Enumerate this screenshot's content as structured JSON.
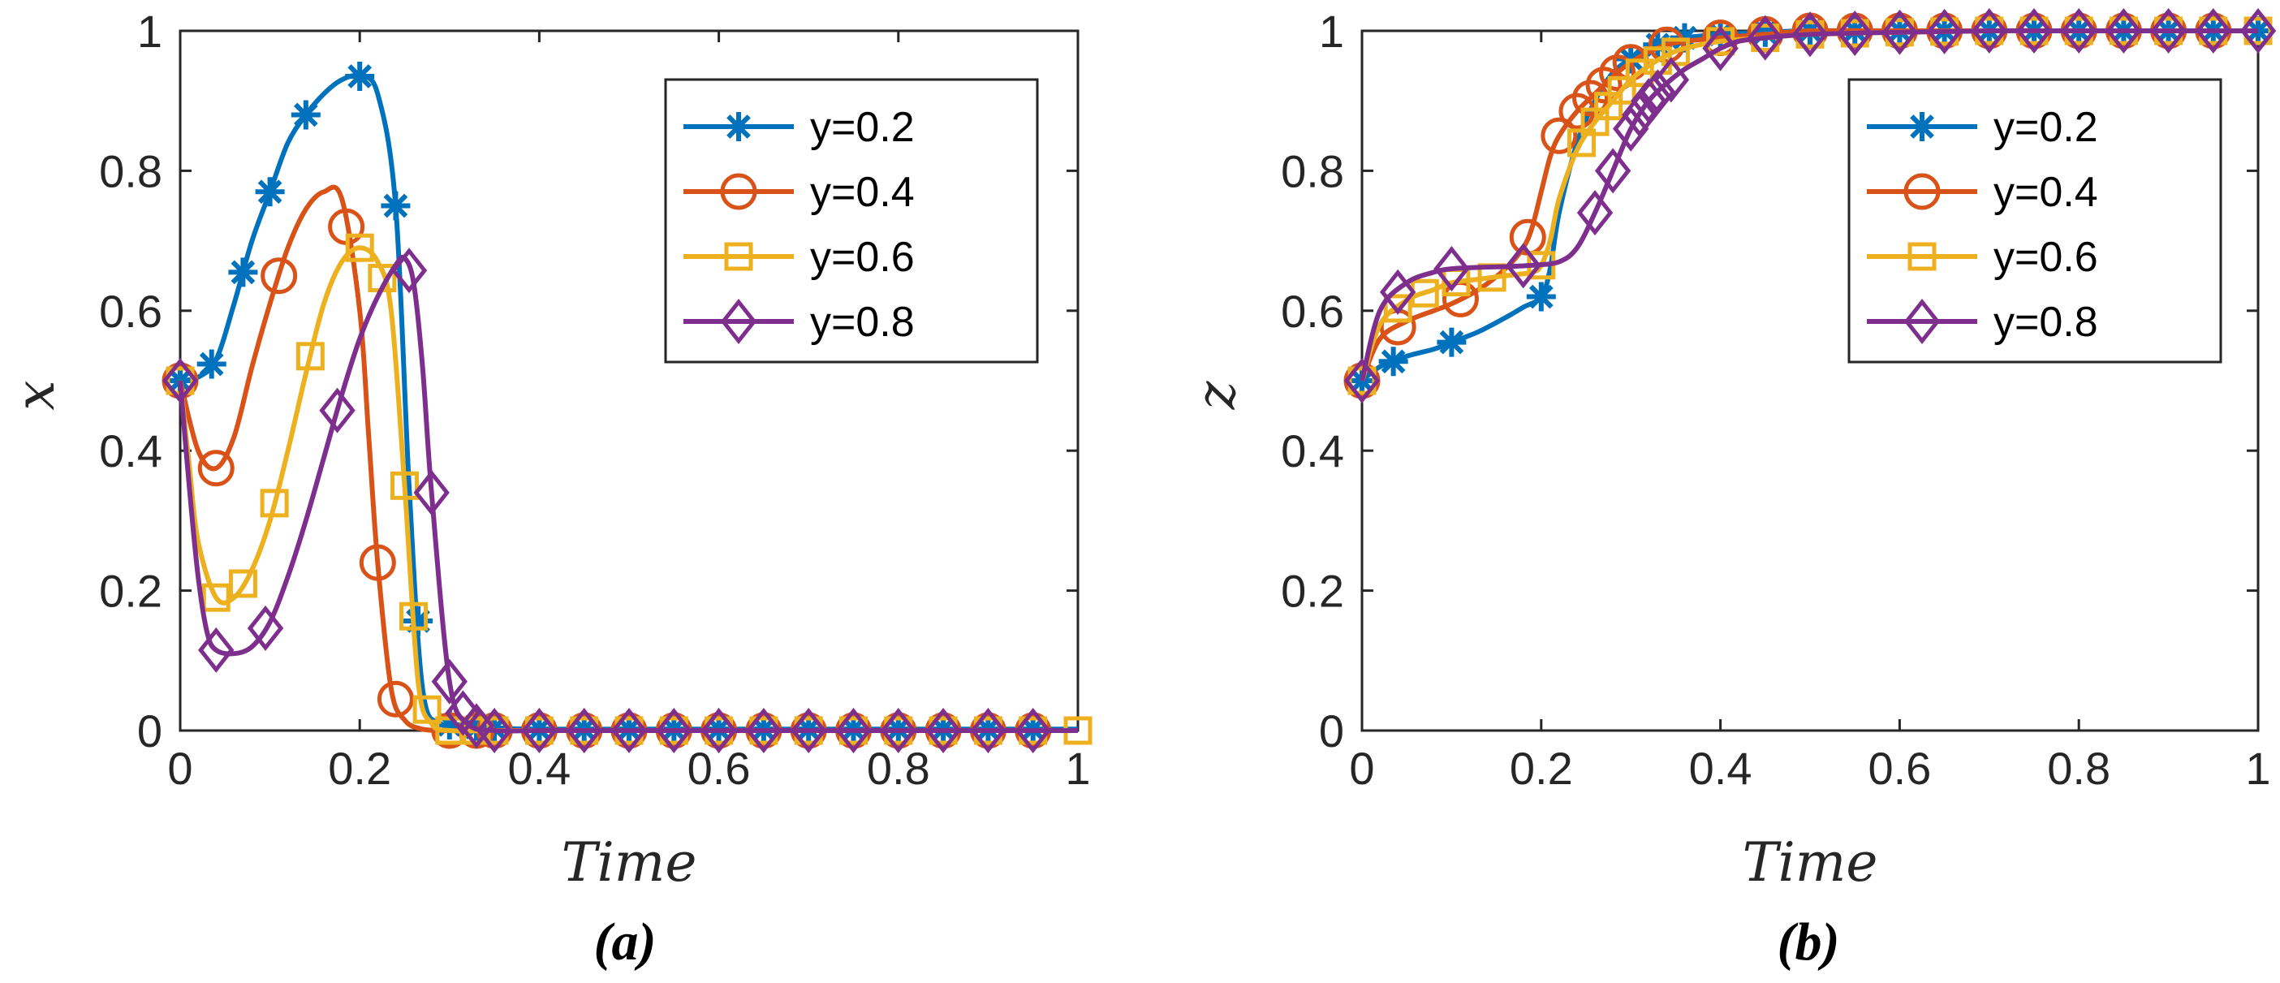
{
  "colors": {
    "series": [
      "#0072BD",
      "#D95319",
      "#EDB120",
      "#7E2F8E"
    ],
    "axis": "#262626"
  },
  "chart_data": [
    {
      "type": "line",
      "panel": "a",
      "caption": "(a)",
      "xlabel": "Time",
      "ylabel": "x",
      "xlim": [
        0,
        1
      ],
      "ylim": [
        0,
        1
      ],
      "xticks": [
        "0",
        "0.2",
        "0.4",
        "0.6",
        "0.8",
        "1"
      ],
      "yticks": [
        "0",
        "0.2",
        "0.4",
        "0.6",
        "0.8",
        "1"
      ],
      "legend_position": "top-right",
      "series": [
        {
          "name": "y=0.2",
          "marker": "asterisk",
          "x": [
            0,
            0.02,
            0.04,
            0.06,
            0.08,
            0.1,
            0.12,
            0.14,
            0.16,
            0.18,
            0.2,
            0.22,
            0.24,
            0.255,
            0.27,
            0.29,
            0.32,
            0.36,
            0.4,
            0.5,
            0.6,
            0.7,
            0.8,
            0.9,
            1.0
          ],
          "y": [
            0.5,
            0.505,
            0.53,
            0.61,
            0.7,
            0.77,
            0.84,
            0.88,
            0.91,
            0.93,
            0.935,
            0.91,
            0.75,
            0.35,
            0.06,
            0.01,
            0.005,
            0.003,
            0.002,
            0.002,
            0.002,
            0.002,
            0.002,
            0.002,
            0.002
          ],
          "markers_x": [
            0,
            0.035,
            0.07,
            0.1,
            0.14,
            0.2,
            0.24,
            0.265,
            0.3,
            0.33,
            0.35,
            0.4,
            0.45,
            0.5,
            0.55,
            0.6,
            0.65,
            0.7,
            0.75,
            0.8,
            0.85,
            0.9,
            0.95
          ]
        },
        {
          "name": "y=0.4",
          "marker": "circle",
          "x": [
            0,
            0.02,
            0.04,
            0.06,
            0.08,
            0.1,
            0.12,
            0.14,
            0.16,
            0.18,
            0.2,
            0.21,
            0.22,
            0.235,
            0.25,
            0.27,
            0.3,
            0.35,
            0.4,
            0.5,
            0.6,
            0.7,
            0.8,
            0.9,
            1.0
          ],
          "y": [
            0.5,
            0.4,
            0.375,
            0.42,
            0.52,
            0.61,
            0.69,
            0.745,
            0.77,
            0.76,
            0.6,
            0.42,
            0.24,
            0.06,
            0.015,
            0.002,
            0.0,
            0.0,
            0.0,
            0.0,
            0.0,
            0.0,
            0.0,
            0.0,
            0.0
          ],
          "markers_x": [
            0,
            0.04,
            0.11,
            0.185,
            0.22,
            0.24,
            0.3,
            0.33,
            0.35,
            0.4,
            0.45,
            0.5,
            0.55,
            0.6,
            0.65,
            0.7,
            0.75,
            0.8,
            0.85,
            0.9,
            0.95
          ]
        },
        {
          "name": "y=0.6",
          "marker": "square",
          "x": [
            0,
            0.01,
            0.02,
            0.04,
            0.06,
            0.08,
            0.1,
            0.12,
            0.14,
            0.16,
            0.18,
            0.2,
            0.22,
            0.235,
            0.25,
            0.265,
            0.28,
            0.3,
            0.35,
            0.4,
            0.5,
            0.6,
            0.7,
            0.8,
            0.9,
            1.0
          ],
          "y": [
            0.5,
            0.38,
            0.27,
            0.19,
            0.19,
            0.23,
            0.3,
            0.4,
            0.51,
            0.61,
            0.67,
            0.69,
            0.67,
            0.6,
            0.35,
            0.07,
            0.01,
            0.0,
            0.0,
            0.0,
            0.0,
            0.0,
            0.0,
            0.0,
            0.0,
            0.0
          ],
          "markers_x": [
            0,
            0.04,
            0.07,
            0.105,
            0.145,
            0.2,
            0.225,
            0.25,
            0.26,
            0.275,
            0.3,
            0.33,
            0.35,
            0.4,
            0.45,
            0.5,
            0.55,
            0.6,
            0.65,
            0.7,
            0.75,
            0.8,
            0.85,
            0.9,
            0.95,
            1.0
          ]
        },
        {
          "name": "y=0.8",
          "marker": "diamond",
          "x": [
            0,
            0.01,
            0.02,
            0.03,
            0.04,
            0.06,
            0.08,
            0.1,
            0.12,
            0.14,
            0.16,
            0.18,
            0.2,
            0.22,
            0.24,
            0.25,
            0.26,
            0.27,
            0.28,
            0.3,
            0.32,
            0.35,
            0.4,
            0.5,
            0.6,
            0.7,
            0.8,
            0.9,
            1.0
          ],
          "y": [
            0.5,
            0.35,
            0.22,
            0.14,
            0.115,
            0.11,
            0.12,
            0.155,
            0.22,
            0.3,
            0.39,
            0.48,
            0.56,
            0.62,
            0.665,
            0.675,
            0.64,
            0.52,
            0.34,
            0.07,
            0.01,
            0.0,
            0.0,
            0.0,
            0.0,
            0.0,
            0.0,
            0.0,
            0.0
          ],
          "markers_x": [
            0,
            0.04,
            0.095,
            0.175,
            0.255,
            0.28,
            0.3,
            0.315,
            0.33,
            0.35,
            0.4,
            0.45,
            0.5,
            0.55,
            0.6,
            0.65,
            0.7,
            0.75,
            0.8,
            0.85,
            0.9,
            0.95
          ]
        }
      ]
    },
    {
      "type": "line",
      "panel": "b",
      "caption": "(b)",
      "xlabel": "Time",
      "ylabel": "z",
      "xlim": [
        0,
        1
      ],
      "ylim": [
        0,
        1
      ],
      "xticks": [
        "0",
        "0.2",
        "0.4",
        "0.6",
        "0.8",
        "1"
      ],
      "yticks": [
        "0",
        "0.2",
        "0.4",
        "0.6",
        "0.8",
        "1"
      ],
      "legend_position": "top-right",
      "series": [
        {
          "name": "y=0.2",
          "marker": "asterisk",
          "x": [
            0,
            0.02,
            0.05,
            0.08,
            0.1,
            0.13,
            0.16,
            0.18,
            0.2,
            0.21,
            0.22,
            0.24,
            0.26,
            0.28,
            0.3,
            0.32,
            0.34,
            0.36,
            0.4,
            0.45,
            0.5,
            0.6,
            0.7,
            0.8,
            0.9,
            1.0
          ],
          "y": [
            0.5,
            0.52,
            0.535,
            0.545,
            0.555,
            0.57,
            0.59,
            0.605,
            0.62,
            0.66,
            0.74,
            0.84,
            0.9,
            0.94,
            0.96,
            0.975,
            0.985,
            0.99,
            0.995,
            0.998,
            1.0,
            1.0,
            1.0,
            1.0,
            1.0,
            1.0
          ],
          "markers_x": [
            0,
            0.035,
            0.1,
            0.2,
            0.3,
            0.33,
            0.36,
            0.4,
            0.45,
            0.5,
            0.55,
            0.6,
            0.65,
            0.7,
            0.75,
            0.8,
            0.85,
            0.9,
            0.95,
            1.0
          ]
        },
        {
          "name": "y=0.4",
          "marker": "circle",
          "x": [
            0,
            0.02,
            0.05,
            0.08,
            0.1,
            0.13,
            0.16,
            0.18,
            0.19,
            0.2,
            0.21,
            0.22,
            0.24,
            0.26,
            0.28,
            0.3,
            0.32,
            0.34,
            0.36,
            0.4,
            0.45,
            0.5,
            0.6,
            0.7,
            0.8,
            0.9,
            1.0
          ],
          "y": [
            0.5,
            0.56,
            0.585,
            0.6,
            0.61,
            0.63,
            0.66,
            0.69,
            0.72,
            0.77,
            0.82,
            0.85,
            0.885,
            0.91,
            0.935,
            0.955,
            0.97,
            0.98,
            0.985,
            0.99,
            0.995,
            1.0,
            1.0,
            1.0,
            1.0,
            1.0,
            1.0
          ],
          "markers_x": [
            0,
            0.04,
            0.11,
            0.185,
            0.22,
            0.24,
            0.255,
            0.27,
            0.285,
            0.3,
            0.34,
            0.4,
            0.45,
            0.5,
            0.55,
            0.6,
            0.65,
            0.7,
            0.75,
            0.8,
            0.85,
            0.9,
            0.95
          ]
        },
        {
          "name": "y=0.6",
          "marker": "square",
          "x": [
            0,
            0.02,
            0.05,
            0.08,
            0.1,
            0.13,
            0.16,
            0.19,
            0.2,
            0.21,
            0.22,
            0.24,
            0.26,
            0.28,
            0.3,
            0.32,
            0.34,
            0.36,
            0.4,
            0.45,
            0.5,
            0.6,
            0.7,
            0.8,
            0.9,
            1.0
          ],
          "y": [
            0.5,
            0.58,
            0.615,
            0.63,
            0.64,
            0.645,
            0.65,
            0.655,
            0.665,
            0.7,
            0.76,
            0.83,
            0.87,
            0.9,
            0.93,
            0.95,
            0.965,
            0.975,
            0.985,
            0.99,
            0.995,
            0.998,
            1.0,
            1.0,
            1.0,
            1.0
          ],
          "markers_x": [
            0,
            0.04,
            0.07,
            0.105,
            0.145,
            0.2,
            0.245,
            0.26,
            0.275,
            0.29,
            0.31,
            0.33,
            0.35,
            0.4,
            0.45,
            0.5,
            0.55,
            0.6,
            0.65,
            0.7,
            0.75,
            0.8,
            0.85,
            0.9,
            0.95,
            1.0
          ]
        },
        {
          "name": "y=0.8",
          "marker": "diamond",
          "x": [
            0,
            0.02,
            0.05,
            0.08,
            0.1,
            0.13,
            0.16,
            0.19,
            0.22,
            0.24,
            0.26,
            0.28,
            0.3,
            0.32,
            0.34,
            0.36,
            0.38,
            0.4,
            0.42,
            0.45,
            0.5,
            0.6,
            0.7,
            0.8,
            0.9,
            1.0
          ],
          "y": [
            0.5,
            0.6,
            0.64,
            0.655,
            0.66,
            0.662,
            0.663,
            0.665,
            0.67,
            0.69,
            0.74,
            0.8,
            0.86,
            0.9,
            0.925,
            0.945,
            0.96,
            0.975,
            0.985,
            0.99,
            0.995,
            0.998,
            1.0,
            1.0,
            1.0,
            1.0
          ],
          "markers_x": [
            0,
            0.04,
            0.1,
            0.18,
            0.26,
            0.28,
            0.3,
            0.31,
            0.32,
            0.33,
            0.345,
            0.4,
            0.45,
            0.5,
            0.55,
            0.6,
            0.65,
            0.7,
            0.75,
            0.8,
            0.85,
            0.9,
            0.95,
            1.0
          ]
        }
      ]
    }
  ]
}
